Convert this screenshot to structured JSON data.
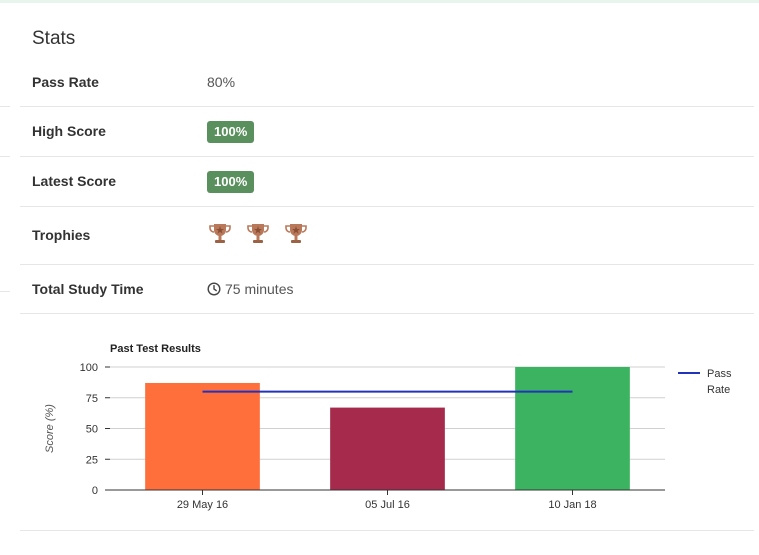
{
  "stats": {
    "title": "Stats",
    "rows": [
      {
        "label": "Pass Rate",
        "value": "80%"
      },
      {
        "label": "High Score",
        "value": "100%"
      },
      {
        "label": "Latest Score",
        "value": "100%"
      },
      {
        "label": "Trophies",
        "count": 3
      },
      {
        "label": "Total Study Time",
        "value": "75 minutes"
      }
    ]
  },
  "colors": {
    "badge": "#5a8f5e",
    "pass_line": "#2233bb",
    "bars": [
      "#ff6f3c",
      "#a52a4c",
      "#3cb361"
    ]
  },
  "chart_data": {
    "type": "bar",
    "title": "Past Test Results",
    "ylabel": "Score (%)",
    "xlabel": "",
    "categories": [
      "29 May 16",
      "05 Jul 16",
      "10 Jan 18"
    ],
    "values": [
      87,
      67,
      100
    ],
    "pass_rate": 80,
    "ylim": [
      0,
      100
    ],
    "yticks": [
      0,
      25,
      50,
      75,
      100
    ],
    "legend": {
      "label_line1": "Pass",
      "label_line2": "Rate",
      "placement": "top-right"
    },
    "grid": true
  }
}
